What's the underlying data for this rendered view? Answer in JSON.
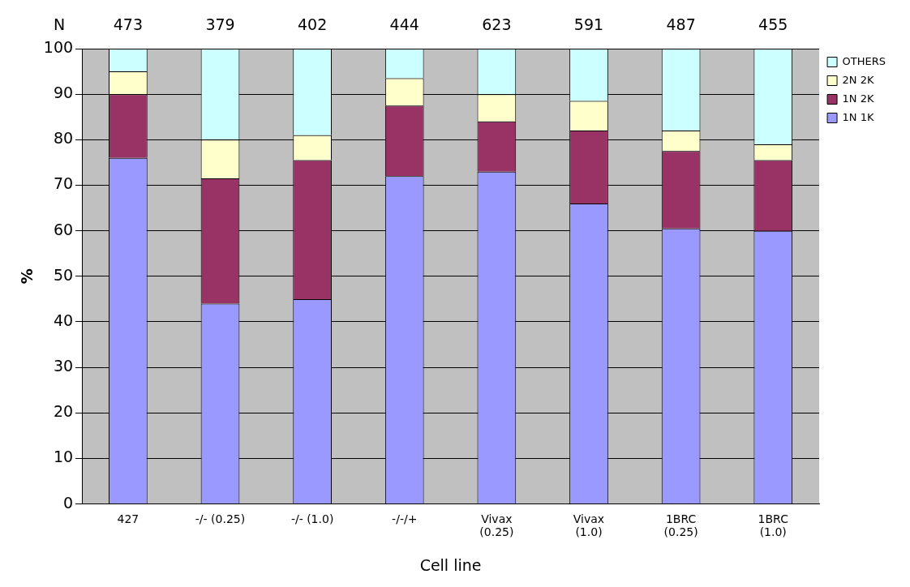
{
  "chart_data": {
    "type": "bar",
    "stacked": true,
    "xlabel": "Cell line",
    "ylabel": "%",
    "categories": [
      "427",
      "-/- (0.25)",
      "-/- (1.0)",
      "-/-/+",
      "Vivax\n(0.25)",
      "Vivax\n(1.0)",
      "1BRC\n(0.25)",
      "1BRC\n(1.0)"
    ],
    "series": [
      {
        "name": "1N 1K",
        "color": "#9999ff",
        "values": [
          76,
          44,
          45,
          72,
          73,
          66,
          60.5,
          60
        ]
      },
      {
        "name": "1N 2K",
        "color": "#993366",
        "values": [
          14,
          27.5,
          30.5,
          15.5,
          11,
          16,
          17,
          15.5
        ]
      },
      {
        "name": "2N 2K",
        "color": "#ffffcc",
        "values": [
          5,
          8.5,
          5.5,
          6,
          6,
          6.5,
          4.5,
          3.5
        ]
      },
      {
        "name": "OTHERS",
        "color": "#ccffff",
        "values": [
          5,
          20,
          19,
          6.5,
          10,
          11.5,
          18,
          21
        ]
      }
    ],
    "ylim": [
      0,
      100
    ],
    "yticks": [
      0,
      10,
      20,
      30,
      40,
      50,
      60,
      70,
      80,
      90,
      100
    ],
    "grid": "y",
    "legend": "top right",
    "annotations": [
      "N",
      "473",
      "379",
      "402",
      "444",
      "623",
      "591",
      "487",
      "455"
    ]
  }
}
